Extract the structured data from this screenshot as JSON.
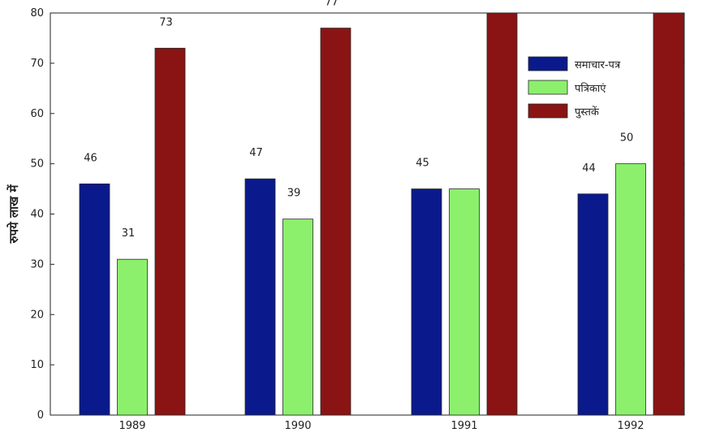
{
  "chart_data": {
    "type": "bar",
    "title": "",
    "xlabel": "",
    "ylabel": "रुपये लाख में",
    "ylim": [
      0,
      80
    ],
    "yticks": [
      "0",
      "10",
      "20",
      "30",
      "40",
      "50",
      "60",
      "70",
      "80"
    ],
    "categories": [
      "1989",
      "1990",
      "1991",
      "1992"
    ],
    "series": [
      {
        "name": "समाचार-पत्र",
        "color": "#0a1a8c",
        "values": [
          46,
          47,
          45,
          44
        ],
        "data_labels": [
          "46",
          "47",
          "45",
          "44"
        ]
      },
      {
        "name": "पत्रिकाएं",
        "color": "#8cf06c",
        "values": [
          31,
          39,
          45,
          50
        ],
        "data_labels": [
          "31",
          "39",
          "",
          "50"
        ]
      },
      {
        "name": "पुस्तकें",
        "color": "#8a1414",
        "values": [
          73,
          77,
          80,
          80
        ],
        "data_labels": [
          "73",
          "77",
          "",
          ""
        ]
      }
    ],
    "legend_position": "top-right",
    "grid": false
  }
}
